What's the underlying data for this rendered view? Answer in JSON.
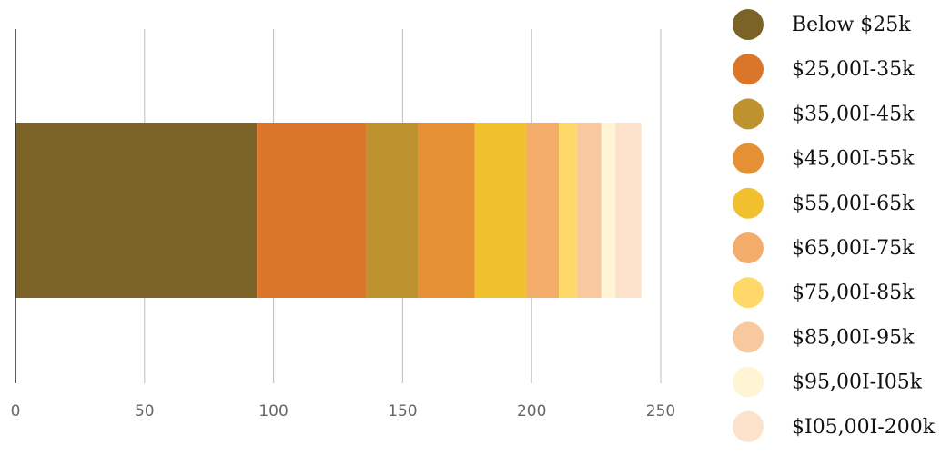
{
  "chart_data": {
    "type": "bar",
    "orientation": "horizontal",
    "stacked": true,
    "title": "",
    "xlabel": "",
    "ylabel": "",
    "xlim": [
      0,
      250
    ],
    "xticks": [
      0,
      50,
      100,
      150,
      200,
      250
    ],
    "xtick_labels": [
      "0",
      "50",
      "100",
      "150",
      "200",
      "250"
    ],
    "grid": "vertical",
    "legend_position": "right",
    "categories": [
      ""
    ],
    "series": [
      {
        "name": "Below $25k",
        "values": [
          93.5
        ],
        "color": "#7b6227"
      },
      {
        "name": "$25,00I-35k",
        "values": [
          42.5
        ],
        "color": "#d97629"
      },
      {
        "name": "$35,00I-45k",
        "values": [
          20
        ],
        "color": "#bf9230"
      },
      {
        "name": "$45,00I-55k",
        "values": [
          22
        ],
        "color": "#e69035"
      },
      {
        "name": "$55,00I-65k",
        "values": [
          20
        ],
        "color": "#f0c02e"
      },
      {
        "name": "$65,00I-75k",
        "values": [
          12.5
        ],
        "color": "#f4ac6a"
      },
      {
        "name": "$75,00I-85k",
        "values": [
          7
        ],
        "color": "#fed869"
      },
      {
        "name": "$85,00I-95k",
        "values": [
          9.5
        ],
        "color": "#f8c89e"
      },
      {
        "name": "$95,00I-I05k",
        "values": [
          5.5
        ],
        "color": "#fff5d5"
      },
      {
        "name": "$I05,00I-200k",
        "values": [
          10
        ],
        "color": "#fce2ca"
      }
    ]
  }
}
